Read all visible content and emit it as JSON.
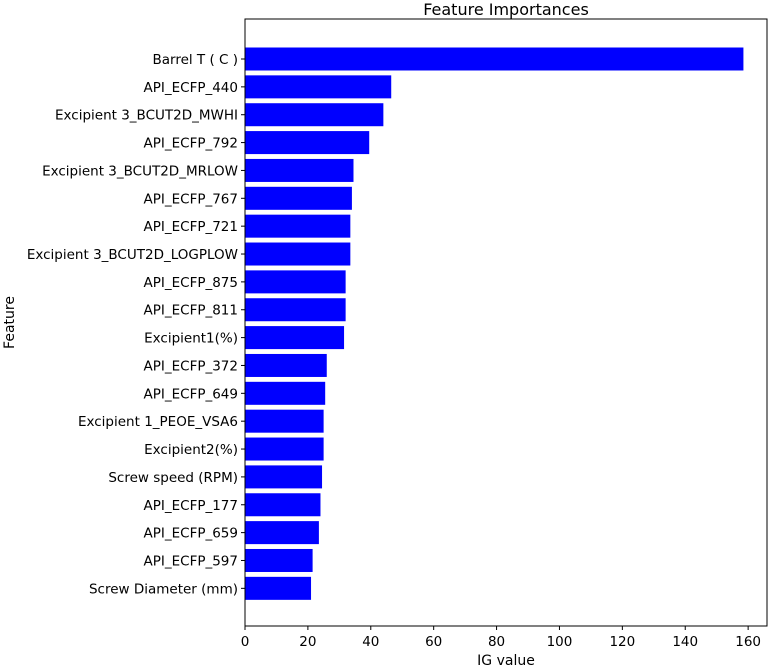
{
  "chart_data": {
    "type": "bar",
    "orientation": "horizontal",
    "title": "Feature Importances",
    "xlabel": "IG value",
    "ylabel": "Feature",
    "xlim": [
      0,
      166
    ],
    "xticks": [
      0,
      20,
      40,
      60,
      80,
      100,
      120,
      140,
      160
    ],
    "bar_color": "#0000ff",
    "grid": false,
    "categories": [
      "Barrel T ( C )",
      "API_ECFP_440",
      "Excipient 3_BCUT2D_MWHI",
      "API_ECFP_792",
      "Excipient 3_BCUT2D_MRLOW",
      "API_ECFP_767",
      "API_ECFP_721",
      "Excipient 3_BCUT2D_LOGPLOW",
      "API_ECFP_875",
      "API_ECFP_811",
      "Excipient1(%)",
      "API_ECFP_372",
      "API_ECFP_649",
      "Excipient 1_PEOE_VSA6",
      "Excipient2(%)",
      "Screw speed (RPM)",
      "API_ECFP_177",
      "API_ECFP_659",
      "API_ECFP_597",
      "Screw Diameter (mm)"
    ],
    "values": [
      158.5,
      46.5,
      44.0,
      39.5,
      34.5,
      34.0,
      33.5,
      33.5,
      32.0,
      32.0,
      31.5,
      26.0,
      25.5,
      25.0,
      25.0,
      24.5,
      24.0,
      23.5,
      21.5,
      21.0
    ]
  }
}
